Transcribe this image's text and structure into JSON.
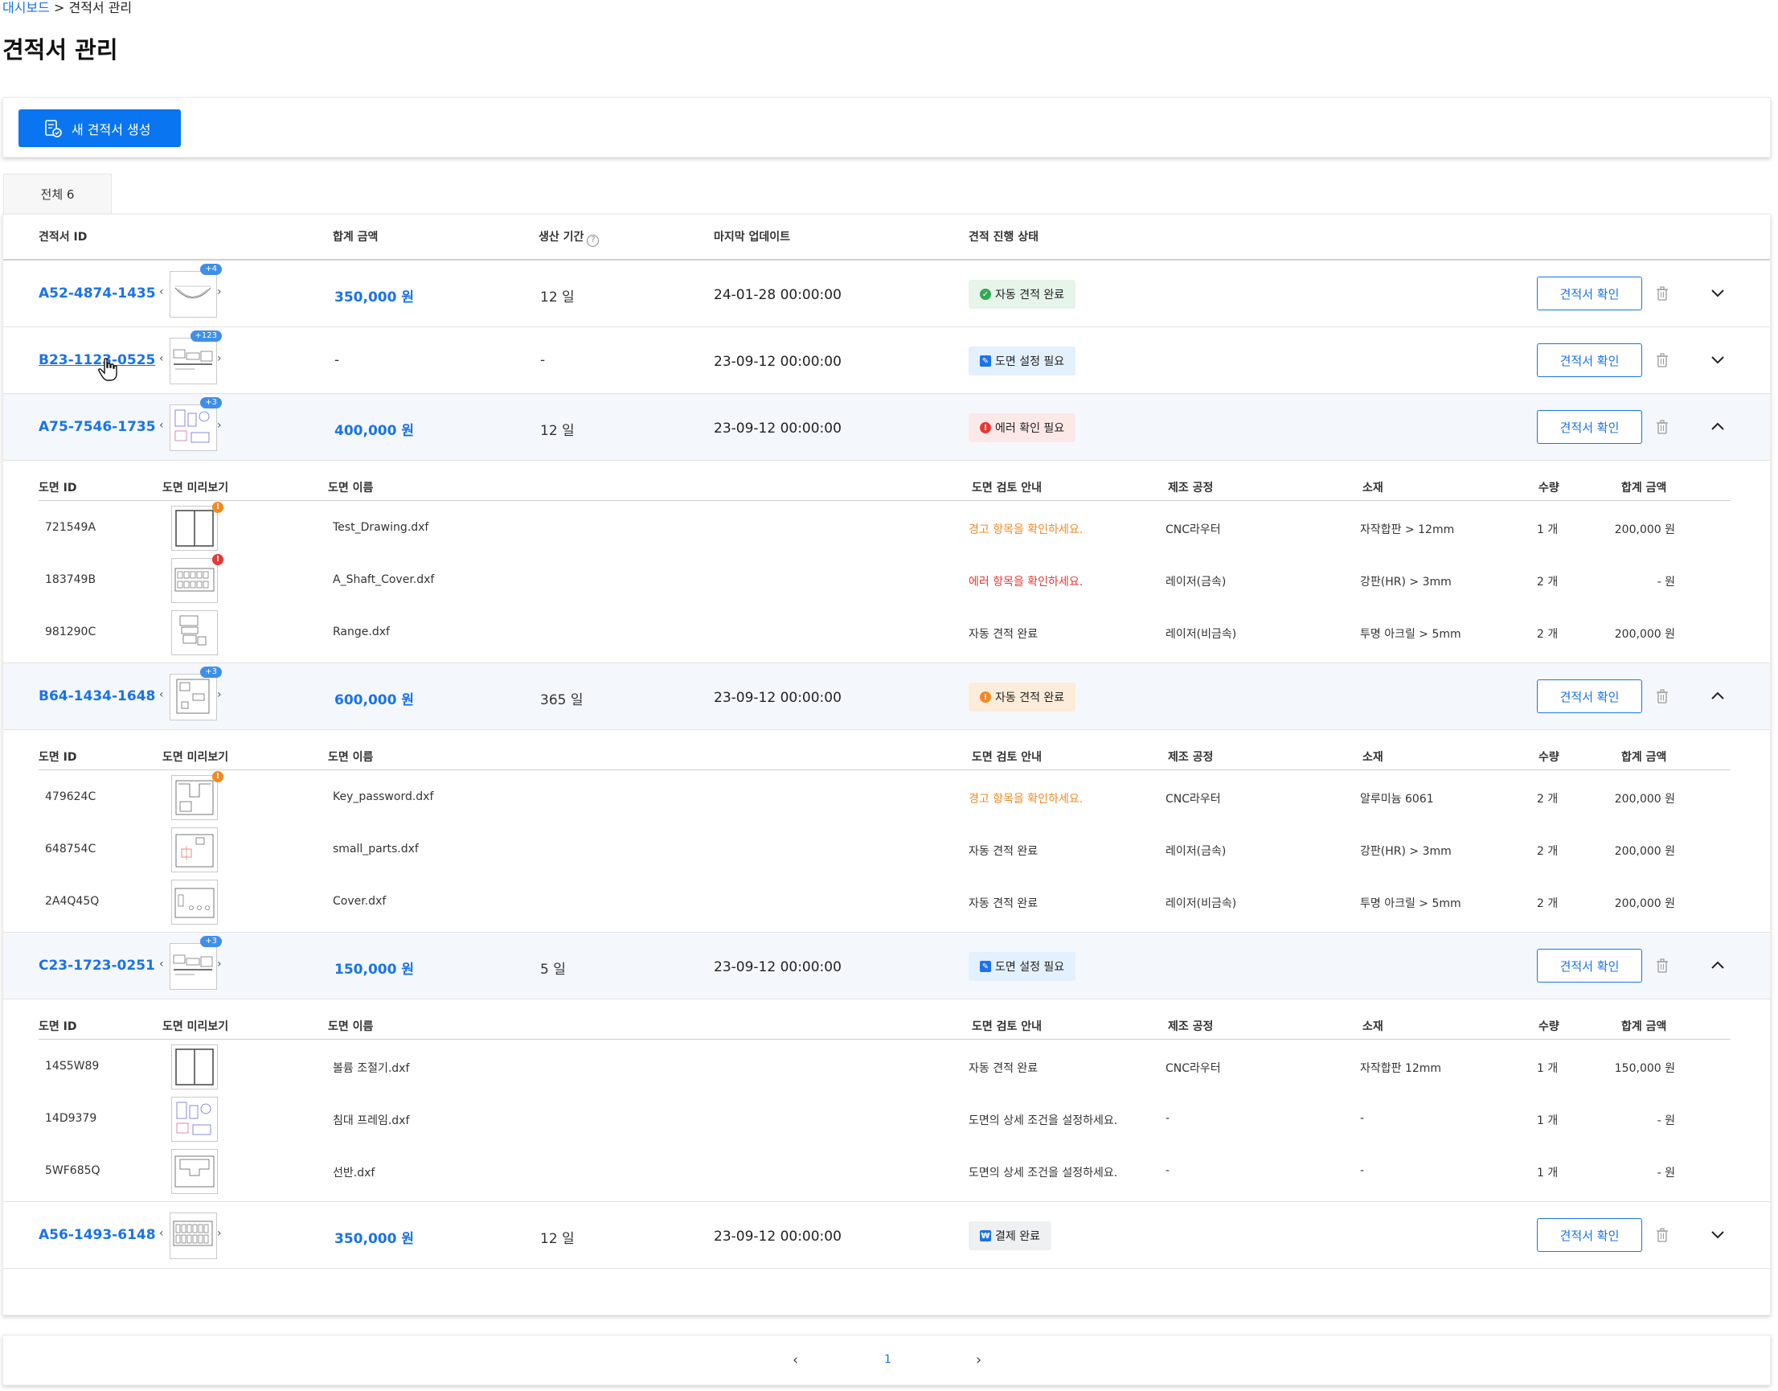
{
  "breadcrumb": {
    "home": "대시보드",
    "separator": " > ",
    "current": "견적서 관리"
  },
  "page_title": "견적서 관리",
  "toolbar": {
    "new_button_label": "새 견적서 생성"
  },
  "tab": {
    "all_label": "전체 6"
  },
  "table_headers": {
    "id": "견적서 ID",
    "amount": "합계 금액",
    "period": "생산 기간",
    "updated": "마지막 업데이트",
    "status": "견적 진행 상태"
  },
  "detail_headers": {
    "drawing_id": "도면 ID",
    "preview": "도면 미리보기",
    "name": "도면 이름",
    "review": "도면 검토 안내",
    "process": "제조 공정",
    "material": "소재",
    "quantity": "수량",
    "total": "합계 금액"
  },
  "confirm_label": "견적서 확인",
  "quotes": [
    {
      "id": "A52-4874-1435",
      "badge": "+4",
      "amount": "350,000 원",
      "period": "12 일",
      "updated": "24-01-28 00:00:00",
      "status": "자동 견적 완료",
      "status_kind": "green",
      "expanded": false
    },
    {
      "id": "B23-1123-0525",
      "badge": "+123",
      "amount": "-",
      "period": "-",
      "updated": "23-09-12 00:00:00",
      "status": "도면 설정 필요",
      "status_kind": "blue",
      "expanded": false
    },
    {
      "id": "A75-7546-1735",
      "badge": "+3",
      "amount": "400,000 원",
      "period": "12 일",
      "updated": "23-09-12 00:00:00",
      "status": "에러 확인 필요",
      "status_kind": "red",
      "expanded": true,
      "drawings": [
        {
          "id": "721549A",
          "name": "Test_Drawing.dxf",
          "review": "경고 항목을 확인하세요.",
          "review_kind": "orange",
          "process": "CNC라우터",
          "material": "자작합판 > 12mm",
          "qty": "1 개",
          "total": "200,000 원",
          "dot": "orange"
        },
        {
          "id": "183749B",
          "name": "A_Shaft_Cover.dxf",
          "review": "에러 항목을 확인하세요.",
          "review_kind": "red",
          "process": "레이저(금속)",
          "material": "강판(HR) > 3mm",
          "qty": "2 개",
          "total": "- 원",
          "dot": "red"
        },
        {
          "id": "981290C",
          "name": "Range.dxf",
          "review": "자동 견적 완료",
          "review_kind": "normal",
          "process": "레이저(비금속)",
          "material": "투명 아크릴  > 5mm",
          "qty": "2 개",
          "total": "200,000 원",
          "dot": ""
        }
      ]
    },
    {
      "id": "B64-1434-1648",
      "badge": "+3",
      "amount": "600,000 원",
      "period": "365 일",
      "updated": "23-09-12 00:00:00",
      "status": "자동 견적 완료",
      "status_kind": "orange",
      "expanded": true,
      "drawings": [
        {
          "id": "479624C",
          "name": "Key_password.dxf",
          "review": "경고 항목을 확인하세요.",
          "review_kind": "orange",
          "process": "CNC라우터",
          "material": "알루미늄 6061",
          "qty": "2 개",
          "total": "200,000 원",
          "dot": "orange"
        },
        {
          "id": "648754C",
          "name": "small_parts.dxf",
          "review": "자동 견적 완료",
          "review_kind": "normal",
          "process": "레이저(금속)",
          "material": "강판(HR) > 3mm",
          "qty": "2 개",
          "total": "200,000 원",
          "dot": ""
        },
        {
          "id": "2A4Q45Q",
          "name": "Cover.dxf",
          "review": "자동 견적 완료",
          "review_kind": "normal",
          "process": "레이저(비금속)",
          "material": "투명 아크릴  > 5mm",
          "qty": "2 개",
          "total": "200,000 원",
          "dot": ""
        }
      ]
    },
    {
      "id": "C23-1723-0251",
      "badge": "+3",
      "amount": "150,000 원",
      "period": "5 일",
      "updated": "23-09-12 00:00:00",
      "status": "도면 설정 필요",
      "status_kind": "blue",
      "expanded": true,
      "drawings": [
        {
          "id": "14S5W89",
          "name": "볼륨 조절기.dxf",
          "review": "자동 견적 완료",
          "review_kind": "normal",
          "process": "CNC라우터",
          "material": "자작합판 12mm",
          "qty": "1 개",
          "total": "150,000 원",
          "dot": ""
        },
        {
          "id": "14D9379",
          "name": "침대 프레임.dxf",
          "review": "도면의 상세 조건을 설정하세요.",
          "review_kind": "normal",
          "process": "-",
          "material": "-",
          "qty": "1 개",
          "total": "- 원",
          "dot": ""
        },
        {
          "id": "5WF685Q",
          "name": "선반.dxf",
          "review": "도면의 상세 조건을 설정하세요.",
          "review_kind": "normal",
          "process": "-",
          "material": "-",
          "qty": "1 개",
          "total": "- 원",
          "dot": ""
        }
      ]
    },
    {
      "id": "A56-1493-6148",
      "badge": "",
      "amount": "350,000 원",
      "period": "12 일",
      "updated": "23-09-12 00:00:00",
      "status": "결제 완료",
      "status_kind": "gray",
      "expanded": false
    }
  ],
  "pagination": {
    "prev": "‹",
    "current": "1",
    "next": "›"
  },
  "colors": {
    "accent": "#1a73e8",
    "primary_button": "#0a75f0",
    "warning": "#f08a24",
    "error": "#e53935",
    "success": "#34a853"
  }
}
